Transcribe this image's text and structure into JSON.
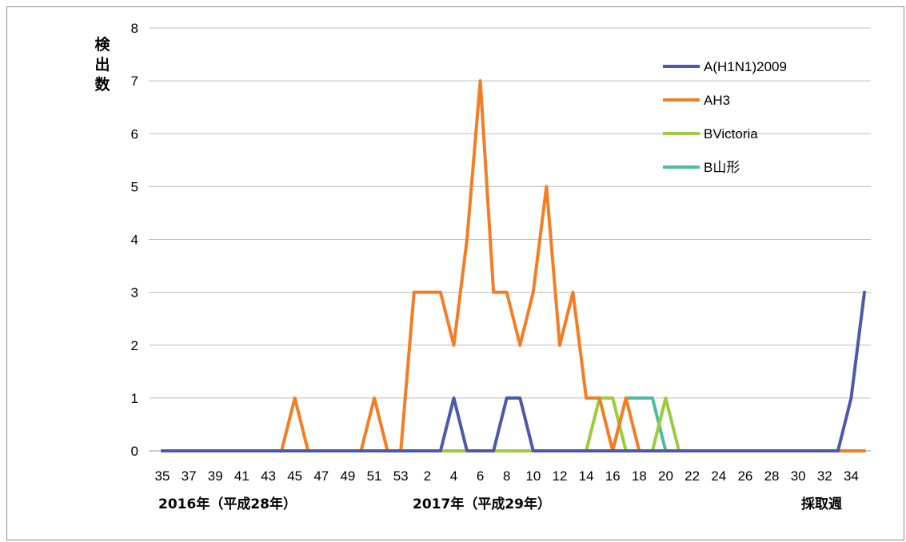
{
  "chart_data": {
    "type": "line",
    "ylabel": "検出数",
    "xlabel": "採取週",
    "ylim": [
      0,
      8
    ],
    "yticks": [
      0,
      1,
      2,
      3,
      4,
      5,
      6,
      7,
      8
    ],
    "grid": "horizontal",
    "legend_position": "top-right",
    "year_labels": [
      "2016年（平成28年）",
      "2017年（平成29年）"
    ],
    "x": [
      35,
      36,
      37,
      38,
      39,
      40,
      41,
      42,
      43,
      44,
      45,
      46,
      47,
      48,
      49,
      50,
      51,
      52,
      53,
      1,
      2,
      3,
      4,
      5,
      6,
      7,
      8,
      9,
      10,
      11,
      12,
      13,
      14,
      15,
      16,
      17,
      18,
      19,
      20,
      21,
      22,
      23,
      24,
      25,
      26,
      27,
      28,
      29,
      30,
      31,
      32,
      33,
      34,
      35
    ],
    "x_tick_labels": [
      "35",
      "37",
      "39",
      "41",
      "43",
      "45",
      "47",
      "49",
      "51",
      "53",
      "2",
      "4",
      "6",
      "8",
      "10",
      "12",
      "14",
      "16",
      "18",
      "20",
      "22",
      "24",
      "26",
      "28",
      "30",
      "32",
      "34"
    ],
    "series": [
      {
        "name": "A(H1N1)2009",
        "color": "#4a5aa8",
        "values": [
          0,
          0,
          0,
          0,
          0,
          0,
          0,
          0,
          0,
          0,
          0,
          0,
          0,
          0,
          0,
          0,
          0,
          0,
          0,
          0,
          0,
          0,
          1,
          0,
          0,
          0,
          1,
          1,
          0,
          0,
          0,
          0,
          0,
          0,
          0,
          0,
          0,
          0,
          0,
          0,
          0,
          0,
          0,
          0,
          0,
          0,
          0,
          0,
          0,
          0,
          0,
          0,
          1,
          3
        ]
      },
      {
        "name": "AH3",
        "color": "#f47d24",
        "values": [
          0,
          0,
          0,
          0,
          0,
          0,
          0,
          0,
          0,
          0,
          1,
          0,
          0,
          0,
          0,
          0,
          1,
          0,
          0,
          3,
          3,
          3,
          2,
          4,
          7,
          3,
          3,
          2,
          3,
          5,
          2,
          3,
          1,
          1,
          0,
          1,
          0,
          0,
          0,
          0,
          0,
          0,
          0,
          0,
          0,
          0,
          0,
          0,
          0,
          0,
          0,
          0,
          0,
          0
        ]
      },
      {
        "name": "BVictoria",
        "color": "#9ccb3b",
        "values": [
          0,
          0,
          0,
          0,
          0,
          0,
          0,
          0,
          0,
          0,
          0,
          0,
          0,
          0,
          0,
          0,
          0,
          0,
          0,
          0,
          0,
          0,
          0,
          0,
          0,
          0,
          0,
          0,
          0,
          0,
          0,
          0,
          0,
          1,
          1,
          0,
          0,
          0,
          1,
          0,
          0,
          0,
          0,
          0,
          0,
          0,
          0,
          0,
          0,
          0,
          0,
          0,
          0,
          0
        ]
      },
      {
        "name": "B山形",
        "color": "#4bbca0",
        "values": [
          0,
          0,
          0,
          0,
          0,
          0,
          0,
          0,
          0,
          0,
          0,
          0,
          0,
          0,
          0,
          0,
          0,
          0,
          0,
          0,
          0,
          0,
          0,
          0,
          0,
          0,
          0,
          0,
          0,
          0,
          0,
          0,
          0,
          0,
          0,
          1,
          1,
          1,
          0,
          0,
          0,
          0,
          0,
          0,
          0,
          0,
          0,
          0,
          0,
          0,
          0,
          0,
          0,
          0
        ]
      }
    ]
  }
}
